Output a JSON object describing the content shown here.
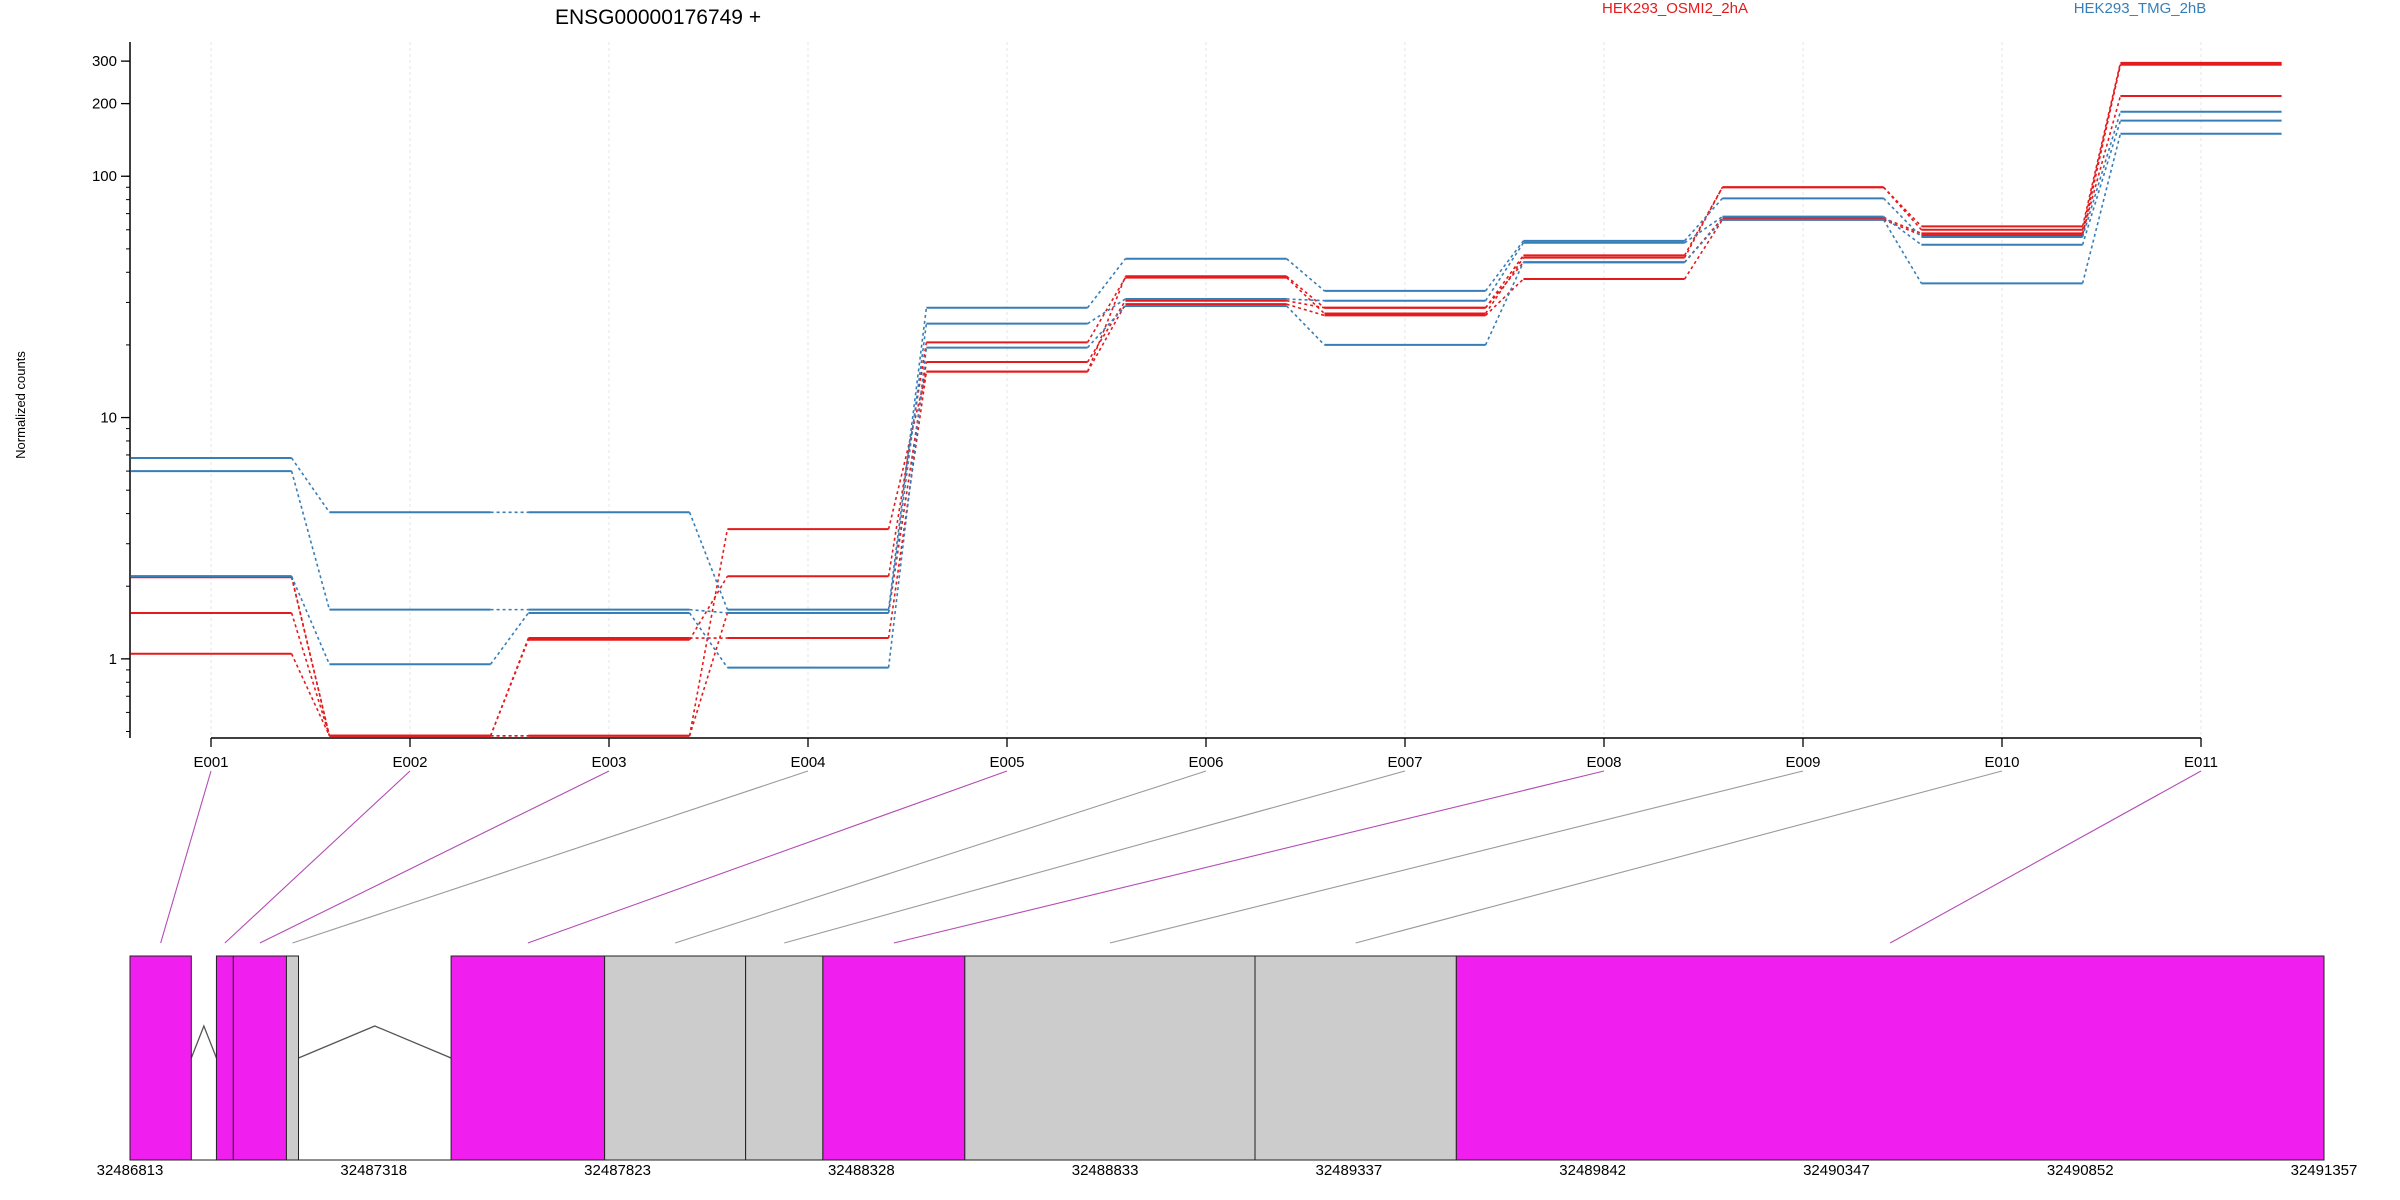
{
  "chart_data": {
    "type": "line",
    "title": "ENSG00000176749 +",
    "ylabel": "Normalized counts",
    "xlabel": "",
    "y_scale": "log",
    "ylim": [
      0.47,
      360
    ],
    "y_ticks": [
      {
        "value": 1,
        "label": "1"
      },
      {
        "value": 10,
        "label": "10"
      },
      {
        "value": 100,
        "label": "100"
      },
      {
        "value": 200,
        "label": "200"
      },
      {
        "value": 300,
        "label": "300"
      }
    ],
    "categories": [
      "E001",
      "E002",
      "E003",
      "E004",
      "E005",
      "E006",
      "E007",
      "E008",
      "E009",
      "E010",
      "E011"
    ],
    "grid": "vertical",
    "legend": [
      {
        "label": "HEK293_OSMI2_2hA",
        "color": "#e41a1c"
      },
      {
        "label": "HEK293_TMG_2hB",
        "color": "#377eb8"
      }
    ],
    "series": [
      {
        "color": "#e41a1c",
        "values": [
          2.2,
          0.48,
          0.48,
          3.45,
          15.5,
          38.5,
          28.5,
          47,
          90,
          62,
          295
        ]
      },
      {
        "color": "#e41a1c",
        "values": [
          2.18,
          0.48,
          1.2,
          2.2,
          20.5,
          38,
          27,
          46,
          90,
          60,
          290
        ]
      },
      {
        "color": "#e41a1c",
        "values": [
          1.55,
          0.48,
          0.48,
          1.55,
          17,
          30.5,
          28.5,
          44,
          67,
          58,
          215
        ]
      },
      {
        "color": "#e41a1c",
        "values": [
          1.05,
          0.48,
          1.22,
          1.22,
          15.5,
          29.5,
          26.5,
          37.5,
          66,
          57,
          290
        ]
      },
      {
        "color": "#377eb8",
        "values": [
          6.8,
          4.05,
          4.05,
          1.6,
          28.5,
          45.5,
          33.5,
          54,
          81,
          56,
          185
        ]
      },
      {
        "color": "#377eb8",
        "values": [
          6.0,
          1.6,
          1.6,
          1.55,
          24.5,
          31,
          30.5,
          53,
          68,
          52,
          170
        ]
      },
      {
        "color": "#377eb8",
        "values": [
          2.2,
          0.95,
          1.55,
          0.92,
          19.5,
          29,
          20,
          44,
          66,
          36,
          150
        ]
      }
    ],
    "gene_model": {
      "coordinate_labels": [
        "32486813",
        "32487318",
        "32487823",
        "32488328",
        "32488833",
        "32489337",
        "32489842",
        "32490347",
        "32490852",
        "32491357"
      ],
      "genomic_range": [
        32486813,
        32491357
      ],
      "exonic_parts": [
        {
          "id": "E001",
          "start": 32486813,
          "end": 32486940,
          "tested": true
        },
        {
          "id": "E002",
          "start": 32486992,
          "end": 32487027,
          "tested": true
        },
        {
          "id": "E003",
          "start": 32487027,
          "end": 32487137,
          "tested": true
        },
        {
          "id": "E004",
          "start": 32487137,
          "end": 32487162,
          "tested": false
        },
        {
          "id": "E005",
          "start": 32487478,
          "end": 32487796,
          "tested": true
        },
        {
          "id": "E006",
          "start": 32487796,
          "end": 32488088,
          "tested": false
        },
        {
          "id": "E007",
          "start": 32488088,
          "end": 32488248,
          "tested": false
        },
        {
          "id": "E008",
          "start": 32488248,
          "end": 32488542,
          "tested": true
        },
        {
          "id": "E009",
          "start": 32488542,
          "end": 32489143,
          "tested": false
        },
        {
          "id": "E010",
          "start": 32489143,
          "end": 32489560,
          "tested": false
        },
        {
          "id": "E011",
          "start": 32489560,
          "end": 32491357,
          "tested": true
        }
      ],
      "tested_color": "#f01eee",
      "untested_color": "#cccccc"
    }
  }
}
